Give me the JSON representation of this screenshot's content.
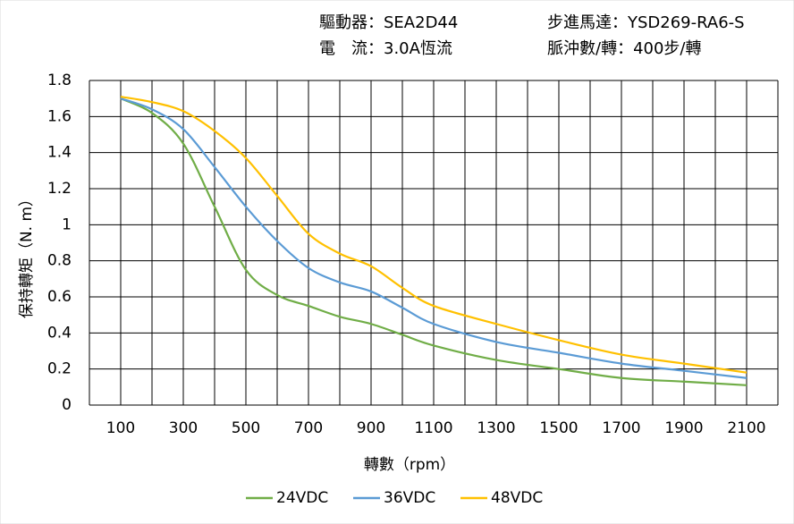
{
  "chart_data": {
    "type": "line",
    "header": [
      "驅動器：SEA2D44",
      "電　流：3.0A恆流",
      "步進馬達：YSD269-RA6-S",
      "脈沖數/轉：400步/轉"
    ],
    "xlabel": "轉數（rpm）",
    "ylabel": "保持轉矩（N. m）",
    "x": [
      100,
      200,
      300,
      400,
      500,
      600,
      700,
      800,
      900,
      1000,
      1100,
      1300,
      1500,
      1700,
      1900,
      2100
    ],
    "series": [
      {
        "name": "24VDC",
        "color": "#70ad47",
        "values": [
          1.7,
          1.62,
          1.45,
          1.1,
          0.75,
          0.61,
          0.55,
          0.49,
          0.45,
          0.39,
          0.33,
          0.25,
          0.2,
          0.15,
          0.13,
          0.11
        ]
      },
      {
        "name": "36VDC",
        "color": "#5b9bd5",
        "values": [
          1.7,
          1.64,
          1.53,
          1.32,
          1.1,
          0.91,
          0.76,
          0.68,
          0.63,
          0.54,
          0.45,
          0.35,
          0.29,
          0.23,
          0.19,
          0.15
        ]
      },
      {
        "name": "48VDC",
        "color": "#ffc000",
        "values": [
          1.71,
          1.68,
          1.63,
          1.52,
          1.37,
          1.16,
          0.95,
          0.84,
          0.77,
          0.65,
          0.55,
          0.45,
          0.36,
          0.28,
          0.23,
          0.18
        ]
      }
    ],
    "xlim": [
      0,
      2200
    ],
    "xticks": [
      100,
      300,
      500,
      700,
      900,
      1100,
      1300,
      1500,
      1700,
      1900,
      2100
    ],
    "xminorticks": [
      0,
      200,
      400,
      600,
      800,
      1000,
      1200,
      1400,
      1600,
      1800,
      2000,
      2200
    ],
    "ylim": [
      0,
      1.8
    ],
    "yticks": [
      0,
      0.2,
      0.4,
      0.6,
      0.8,
      1,
      1.2,
      1.4,
      1.6,
      1.8
    ],
    "grid": true,
    "legend": "bottom"
  }
}
